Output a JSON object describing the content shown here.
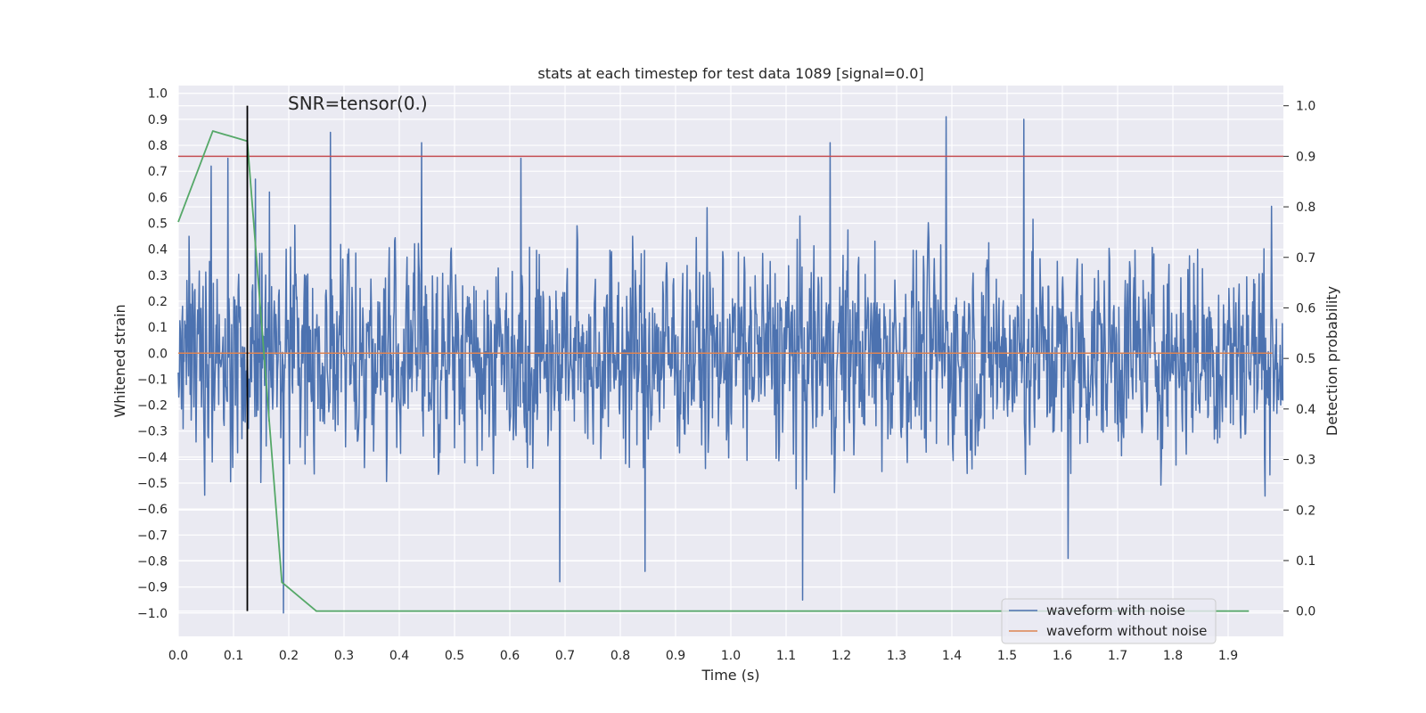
{
  "chart_data": {
    "type": "line",
    "title": "stats at each timestep for test data 1089 [signal=0.0]",
    "xlabel": "Time (s)",
    "ylabel_left": "Whitened strain",
    "ylabel_right": "Detection probability",
    "xlim": [
      0.0,
      2.0
    ],
    "ylim_left": [
      -1.09,
      1.03
    ],
    "ylim_right": [
      -0.05,
      1.04
    ],
    "x_ticks": [
      "0.0",
      "0.1",
      "0.2",
      "0.3",
      "0.4",
      "0.5",
      "0.6",
      "0.7",
      "0.8",
      "0.9",
      "1.0",
      "1.1",
      "1.2",
      "1.3",
      "1.4",
      "1.5",
      "1.6",
      "1.7",
      "1.8",
      "1.9"
    ],
    "y_ticks_left": [
      "1.0",
      "0.9",
      "0.8",
      "0.7",
      "0.6",
      "0.5",
      "0.4",
      "0.3",
      "0.2",
      "0.1",
      "0.0",
      "-0.1",
      "-0.2",
      "-0.3",
      "-0.4",
      "-0.5",
      "-0.6",
      "-0.7",
      "-0.8",
      "-0.9",
      "-1.0"
    ],
    "y_ticks_right": [
      "1.0",
      "0.9",
      "0.8",
      "0.7",
      "0.6",
      "0.5",
      "0.4",
      "0.3",
      "0.2",
      "0.1",
      "0.0"
    ],
    "annotation": "SNR=tensor(0.)",
    "threshold_probability": 0.9,
    "marker_time": 0.125,
    "noise_amplitude_approx": 0.35,
    "series": [
      {
        "name": "waveform with noise",
        "color": "#4c72b0",
        "axis": "left",
        "sample_count": 2048,
        "description_values": "dense whitened noise between about -1.0 and 0.92",
        "peaks": [
          {
            "x": 0.02,
            "y": 0.45
          },
          {
            "x": 0.06,
            "y": 0.72
          },
          {
            "x": 0.09,
            "y": 0.75
          },
          {
            "x": 0.14,
            "y": 0.67
          },
          {
            "x": 0.165,
            "y": 0.62
          },
          {
            "x": 0.275,
            "y": 0.85
          },
          {
            "x": 0.44,
            "y": 0.81
          },
          {
            "x": 0.62,
            "y": 0.75
          },
          {
            "x": 0.69,
            "y": -0.88
          },
          {
            "x": 0.845,
            "y": -0.84
          },
          {
            "x": 1.13,
            "y": -0.95
          },
          {
            "x": 1.18,
            "y": 0.81
          },
          {
            "x": 1.39,
            "y": 0.91
          },
          {
            "x": 1.53,
            "y": 0.9
          },
          {
            "x": 1.61,
            "y": -0.79
          },
          {
            "x": 0.19,
            "y": -1.0
          }
        ]
      },
      {
        "name": "waveform without noise",
        "color": "#dd8452",
        "axis": "left",
        "x": [
          0.0,
          1.98
        ],
        "y": [
          0.0,
          0.0
        ]
      },
      {
        "name": "detection probability",
        "color": "#55a868",
        "axis": "right",
        "x": [
          0.0,
          0.0625,
          0.125,
          0.1875,
          0.25,
          0.3125,
          0.375,
          0.4375,
          0.5,
          0.5625,
          0.625,
          0.6875,
          0.75,
          0.8125,
          0.875,
          0.9375,
          1.0,
          1.0625,
          1.125,
          1.1875,
          1.25,
          1.3125,
          1.375,
          1.4375,
          1.5,
          1.5625,
          1.625,
          1.6875,
          1.75,
          1.8125,
          1.875,
          1.9375
        ],
        "y": [
          0.77,
          0.95,
          0.93,
          0.057,
          0.0,
          0.0,
          0.0,
          0.0,
          0.0,
          0.0,
          0.0,
          0.0,
          0.0,
          0.0,
          0.0,
          0.0,
          0.0,
          0.0,
          0.0,
          0.0,
          0.0,
          0.0,
          0.0,
          0.0,
          0.0,
          0.0,
          0.0,
          0.0,
          0.0,
          0.0,
          0.0,
          0.0
        ]
      }
    ],
    "legend": {
      "placement": "bottom-right",
      "entries": [
        {
          "label": "waveform with noise",
          "color": "#4c72b0"
        },
        {
          "label": "waveform without noise",
          "color": "#dd8452"
        }
      ]
    },
    "colors": {
      "axes_bg": "#eaeaf2",
      "grid": "#ffffff",
      "threshold": "#c44e52",
      "marker": "#000000"
    }
  }
}
